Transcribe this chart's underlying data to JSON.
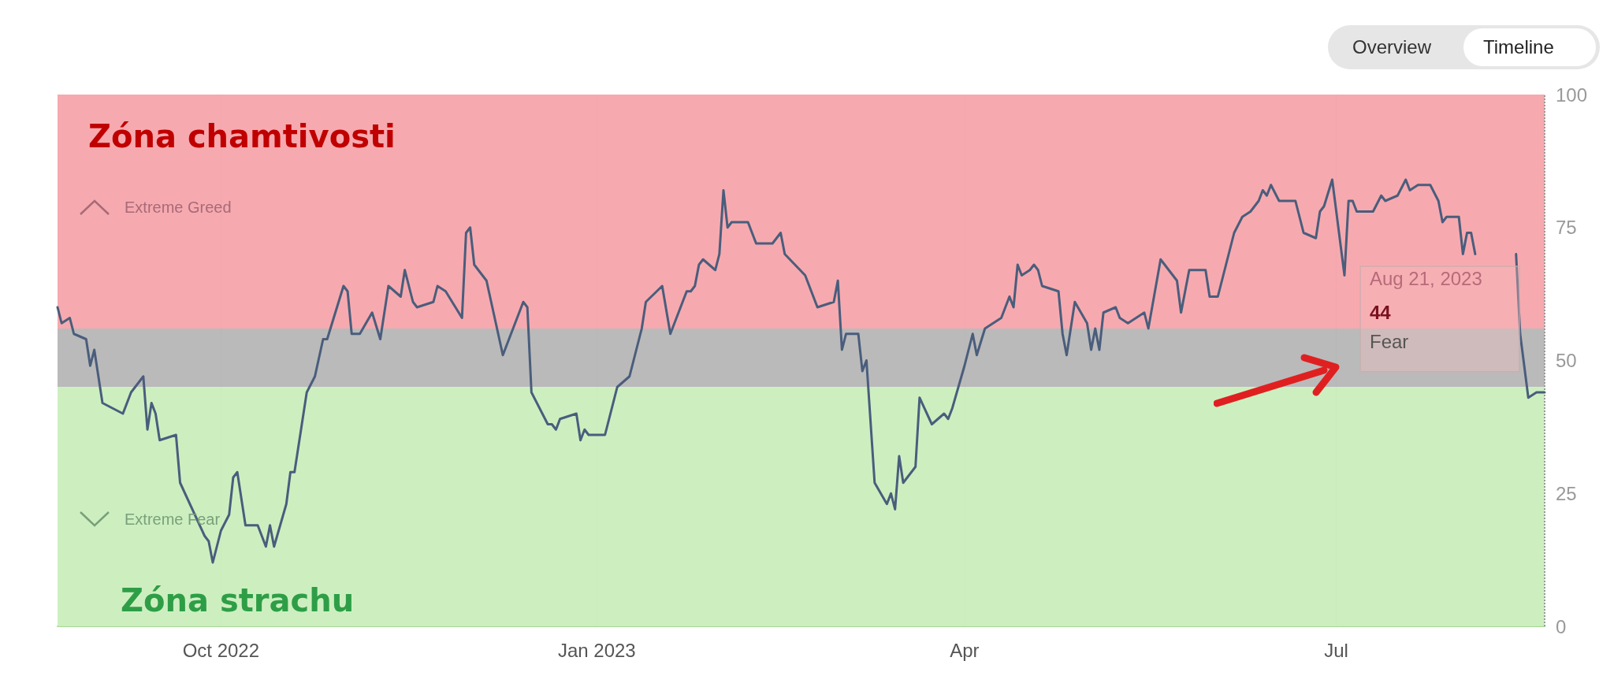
{
  "chart_data": {
    "type": "line",
    "color": "#4a5d7c",
    "line_style": "solid",
    "grid": true,
    "xlim": [
      "2022-08-22",
      "2023-08-21"
    ],
    "xticks": [
      {
        "value": "2022-10-01",
        "label": "Oct 2022"
      },
      {
        "value": "2023-01-01",
        "label": "Jan 2023"
      },
      {
        "value": "2023-04-01",
        "label": "Apr"
      },
      {
        "value": "2023-07-01",
        "label": "Jul"
      }
    ],
    "ylim": [
      0,
      100
    ],
    "yticks": [
      0,
      25,
      50,
      75,
      100
    ],
    "x": [
      "2022-08-22",
      "2022-08-23",
      "2022-08-25",
      "2022-08-26",
      "2022-08-29",
      "2022-08-30",
      "2022-08-31",
      "2022-09-02",
      "2022-09-07",
      "2022-09-09",
      "2022-09-12",
      "2022-09-13",
      "2022-09-14",
      "2022-09-15",
      "2022-09-16",
      "2022-09-20",
      "2022-09-21",
      "2022-09-27",
      "2022-09-28",
      "2022-09-29",
      "2022-10-01",
      "2022-10-03",
      "2022-10-04",
      "2022-10-05",
      "2022-10-07",
      "2022-10-10",
      "2022-10-12",
      "2022-10-13",
      "2022-10-14",
      "2022-10-17",
      "2022-10-18",
      "2022-10-19",
      "2022-10-21",
      "2022-10-22",
      "2022-10-24",
      "2022-10-26",
      "2022-10-27",
      "2022-10-31",
      "2022-11-01",
      "2022-11-02",
      "2022-11-04",
      "2022-11-07",
      "2022-11-09",
      "2022-11-11",
      "2022-11-14",
      "2022-11-15",
      "2022-11-17",
      "2022-11-18",
      "2022-11-22",
      "2022-11-23",
      "2022-11-25",
      "2022-11-29",
      "2022-11-30",
      "2022-12-01",
      "2022-12-02",
      "2022-12-05",
      "2022-12-09",
      "2022-12-14",
      "2022-12-15",
      "2022-12-16",
      "2022-12-20",
      "2022-12-21",
      "2022-12-22",
      "2022-12-23",
      "2022-12-27",
      "2022-12-28",
      "2022-12-29",
      "2022-12-30",
      "2023-01-03",
      "2023-01-06",
      "2023-01-09",
      "2023-01-12",
      "2023-01-13",
      "2023-01-17",
      "2023-01-19",
      "2023-01-20",
      "2023-01-23",
      "2023-01-24",
      "2023-01-25",
      "2023-01-26",
      "2023-01-27",
      "2023-01-30",
      "2023-01-31",
      "2023-02-01",
      "2023-02-02",
      "2023-02-03",
      "2023-02-07",
      "2023-02-09",
      "2023-02-13",
      "2023-02-15",
      "2023-02-16",
      "2023-02-21",
      "2023-02-24",
      "2023-02-28",
      "2023-03-01",
      "2023-03-02",
      "2023-03-03",
      "2023-03-06",
      "2023-03-07",
      "2023-03-08",
      "2023-03-10",
      "2023-03-13",
      "2023-03-14",
      "2023-03-15",
      "2023-03-16",
      "2023-03-17",
      "2023-03-20",
      "2023-03-21",
      "2023-03-24",
      "2023-03-27",
      "2023-03-28",
      "2023-03-29",
      "2023-04-01",
      "2023-04-03",
      "2023-04-04",
      "2023-04-06",
      "2023-04-10",
      "2023-04-12",
      "2023-04-13",
      "2023-04-14",
      "2023-04-15",
      "2023-04-17",
      "2023-04-18",
      "2023-04-19",
      "2023-04-20",
      "2023-04-24",
      "2023-04-25",
      "2023-04-26",
      "2023-04-28",
      "2023-05-01",
      "2023-05-02",
      "2023-05-03",
      "2023-05-04",
      "2023-05-05",
      "2023-05-08",
      "2023-05-09",
      "2023-05-11",
      "2023-05-15",
      "2023-05-16",
      "2023-05-19",
      "2023-05-23",
      "2023-05-24",
      "2023-05-26",
      "2023-05-30",
      "2023-05-31",
      "2023-06-02",
      "2023-06-06",
      "2023-06-08",
      "2023-06-10",
      "2023-06-12",
      "2023-06-13",
      "2023-06-14",
      "2023-06-15",
      "2023-06-17",
      "2023-06-21",
      "2023-06-23",
      "2023-06-26",
      "2023-06-27",
      "2023-06-28",
      "2023-06-30",
      "2023-07-03",
      "2023-07-04",
      "2023-07-05",
      "2023-07-06",
      "2023-07-10",
      "2023-07-12",
      "2023-07-13",
      "2023-07-16",
      "2023-07-18",
      "2023-07-19",
      "2023-07-21",
      "2023-07-24",
      "2023-07-26",
      "2023-07-27",
      "2023-07-28",
      "2023-07-31",
      "2023-08-01",
      "2023-08-02",
      "2023-08-03",
      "2023-08-04",
      "2023-08-08",
      "2023-08-14",
      "2023-08-15",
      "2023-08-17",
      "2023-08-19",
      "2023-08-21"
    ],
    "values": [
      60,
      57,
      58,
      55,
      54,
      49,
      52,
      42,
      40,
      44,
      47,
      37,
      42,
      40,
      35,
      36,
      27,
      17,
      16,
      12,
      18,
      21,
      28,
      29,
      19,
      19,
      15,
      19,
      15,
      23,
      29,
      29,
      39,
      44,
      47,
      54,
      54,
      64,
      63,
      55,
      55,
      59,
      54,
      64,
      62,
      67,
      61,
      60,
      61,
      64,
      63,
      58,
      74,
      75,
      68,
      65,
      51,
      61,
      60,
      44,
      38,
      38,
      37,
      39,
      40,
      35,
      37,
      36,
      36,
      45,
      47,
      56,
      61,
      64,
      55,
      57,
      63,
      63,
      64,
      68,
      69,
      67,
      70,
      82,
      75,
      76,
      76,
      72,
      72,
      74,
      70,
      66,
      60,
      61,
      65,
      52,
      55,
      55,
      48,
      50,
      27,
      23,
      25,
      22,
      32,
      27,
      30,
      43,
      38,
      40,
      39,
      41,
      49,
      55,
      51,
      56,
      58,
      62,
      60,
      68,
      66,
      67,
      68,
      67,
      64,
      63,
      55,
      51,
      61,
      57,
      52,
      56,
      52,
      59,
      60,
      58,
      57,
      59,
      56,
      69,
      65,
      59,
      67,
      67,
      62,
      62,
      74,
      77,
      78,
      80,
      82,
      81,
      83,
      80,
      80,
      74,
      73,
      78,
      79,
      84,
      66,
      80,
      80,
      78,
      78,
      81,
      80,
      81,
      84,
      82,
      83,
      83,
      80,
      76,
      77,
      77,
      70,
      74,
      74,
      70,
      null,
      70,
      55,
      43,
      44,
      44
    ],
    "bands": [
      {
        "axis": "y",
        "from": 56,
        "to": 100,
        "label": "Zóna chamtivosti",
        "color": "#f5a3a8"
      },
      {
        "axis": "y",
        "from": 45,
        "to": 56,
        "color": "#b4b4b4"
      },
      {
        "axis": "y",
        "from": 0,
        "to": 45,
        "label": "Zóna strachu",
        "color": "#c9eebb"
      }
    ],
    "ref_lines": [
      {
        "axis": "x",
        "value": "2023-08-21",
        "line_style": "dotted",
        "color": "#999999"
      }
    ],
    "annotations": [
      "Overview",
      "Timeline",
      "Extreme Greed",
      "Extreme Fear",
      "Aug 21, 2023",
      "44",
      "Fear"
    ]
  }
}
